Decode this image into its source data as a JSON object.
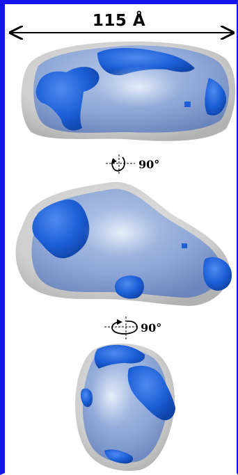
{
  "scale": {
    "label": "115 Å"
  },
  "rotations": [
    {
      "angle_label": "90°",
      "axis": "vertical"
    },
    {
      "angle_label": "90°",
      "axis": "horizontal"
    }
  ],
  "views": [
    {
      "name": "top-view"
    },
    {
      "name": "side-view"
    },
    {
      "name": "end-view"
    }
  ],
  "colors": {
    "frame": "#1515f0",
    "envelope": "#c8c8c8",
    "model": "#8fa6d8",
    "patch": "#1c5fd6",
    "highlight": "#d6e4f6"
  }
}
